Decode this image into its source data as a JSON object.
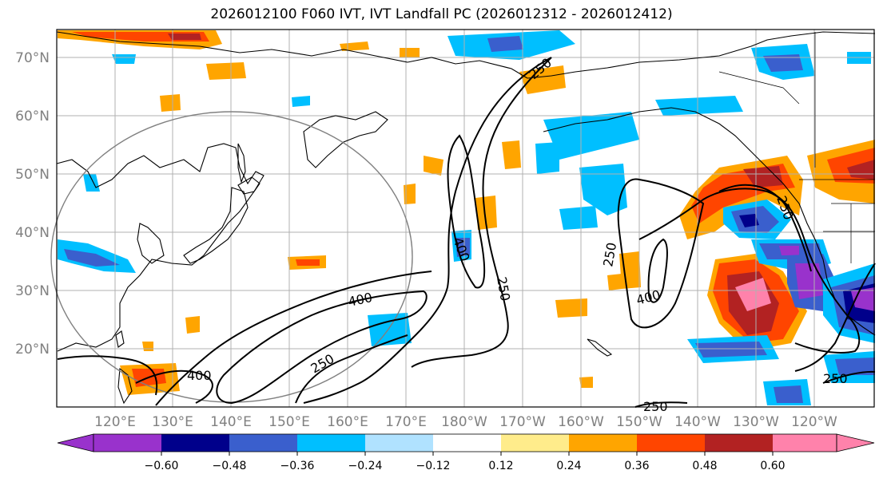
{
  "title": "2026012100 F060 IVT, IVT Landfall PC (2026012312 - 2026012412)",
  "lat_labels": [
    "70°N",
    "60°N",
    "50°N",
    "40°N",
    "30°N",
    "20°N"
  ],
  "lon_labels": [
    "120°E",
    "130°E",
    "140°E",
    "150°E",
    "160°E",
    "170°E",
    "180°W",
    "170°W",
    "160°W",
    "150°W",
    "140°W",
    "130°W",
    "120°W"
  ],
  "colorbar": {
    "colors": [
      "#9932cc",
      "#00008b",
      "#3a5fcd",
      "#00bfff",
      "#b0e2ff",
      "#ffffff",
      "#ffec8b",
      "#ffa500",
      "#ff4500",
      "#b22222",
      "#ff82ab"
    ],
    "tick_labels": [
      "−0.60",
      "−0.48",
      "−0.36",
      "−0.24",
      "−0.12",
      "0.12",
      "0.24",
      "0.36",
      "0.48",
      "0.60"
    ]
  },
  "contour_labels": [
    "250",
    "400",
    "400",
    "250",
    "400",
    "250",
    "250",
    "400",
    "250",
    "250",
    "250"
  ],
  "colors": {
    "grid": "#b0b0b0",
    "label_gray": "#808080",
    "coast": "#000000",
    "ivt_contour": "#000000"
  }
}
